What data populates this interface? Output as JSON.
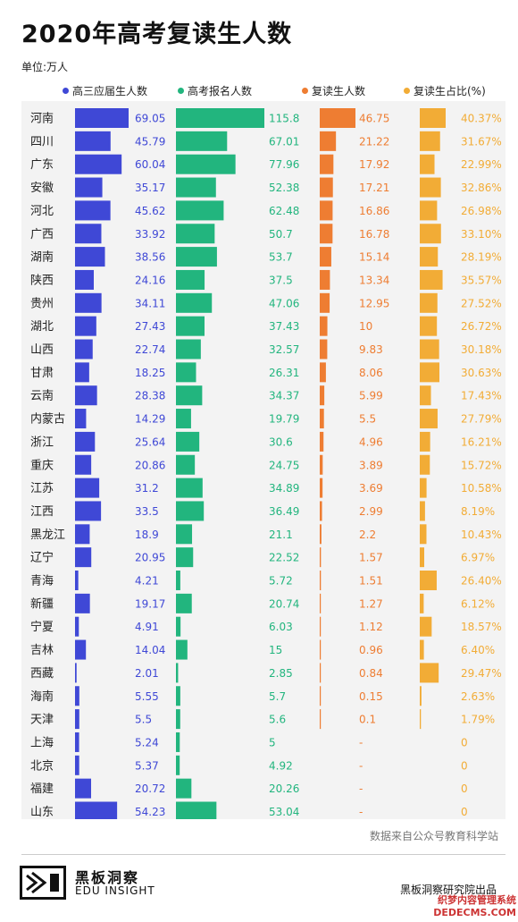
{
  "title": "2020年高考复读生人数",
  "unit": "单位:万人",
  "source": "数据来自公众号教育科学站",
  "brand": {
    "name_cn": "黑板洞察",
    "name_en": "EDU INSIGHT"
  },
  "credit": "黑板洞察研究院出品",
  "watermark": {
    "line1": "织梦内容管理系统",
    "line2": "DEDECMS.COM"
  },
  "colors": {
    "blue": "#3f48d6",
    "green": "#22b57e",
    "orange": "#ee7d32",
    "yellow": "#f2ac36",
    "panel": "#f3f3f3"
  },
  "chart_data": {
    "type": "bar",
    "categories": [
      "河南",
      "四川",
      "广东",
      "安徽",
      "河北",
      "广西",
      "湖南",
      "陕西",
      "贵州",
      "湖北",
      "山西",
      "甘肃",
      "云南",
      "内蒙古",
      "浙江",
      "重庆",
      "江苏",
      "江西",
      "黑龙江",
      "辽宁",
      "青海",
      "新疆",
      "宁夏",
      "吉林",
      "西藏",
      "海南",
      "天津",
      "上海",
      "北京",
      "福建",
      "山东"
    ],
    "series": [
      {
        "name": "高三应届生人数",
        "color": "#3f48d6",
        "values": [
          69.05,
          45.79,
          60.04,
          35.17,
          45.62,
          33.92,
          38.56,
          24.16,
          34.11,
          27.43,
          22.74,
          18.25,
          28.38,
          14.29,
          25.64,
          20.86,
          31.2,
          33.5,
          18.9,
          20.95,
          4.21,
          19.17,
          4.91,
          14.04,
          2.01,
          5.55,
          5.5,
          5.24,
          5.37,
          20.72,
          54.23
        ],
        "labels": [
          "69.05",
          "45.79",
          "60.04",
          "35.17",
          "45.62",
          "33.92",
          "38.56",
          "24.16",
          "34.11",
          "27.43",
          "22.74",
          "18.25",
          "28.38",
          "14.29",
          "25.64",
          "20.86",
          "31.2",
          "33.5",
          "18.9",
          "20.95",
          "4.21",
          "19.17",
          "4.91",
          "14.04",
          "2.01",
          "5.55",
          "5.5",
          "5.24",
          "5.37",
          "20.72",
          "54.23"
        ]
      },
      {
        "name": "高考报名人数",
        "color": "#22b57e",
        "values": [
          115.8,
          67.01,
          77.96,
          52.38,
          62.48,
          50.7,
          53.7,
          37.5,
          47.06,
          37.43,
          32.57,
          26.31,
          34.37,
          19.79,
          30.6,
          24.75,
          34.89,
          36.49,
          21.1,
          22.52,
          5.72,
          20.74,
          6.03,
          15,
          2.85,
          5.7,
          5.6,
          5,
          4.92,
          20.26,
          53.04
        ],
        "labels": [
          "115.8",
          "67.01",
          "77.96",
          "52.38",
          "62.48",
          "50.7",
          "53.7",
          "37.5",
          "47.06",
          "37.43",
          "32.57",
          "26.31",
          "34.37",
          "19.79",
          "30.6",
          "24.75",
          "34.89",
          "36.49",
          "21.1",
          "22.52",
          "5.72",
          "20.74",
          "6.03",
          "15",
          "2.85",
          "5.7",
          "5.6",
          "5",
          "4.92",
          "20.26",
          "53.04"
        ]
      },
      {
        "name": "复读生人数",
        "color": "#ee7d32",
        "values": [
          46.75,
          21.22,
          17.92,
          17.21,
          16.86,
          16.78,
          15.14,
          13.34,
          12.95,
          10,
          9.83,
          8.06,
          5.99,
          5.5,
          4.96,
          3.89,
          3.69,
          2.99,
          2.2,
          1.57,
          1.51,
          1.27,
          1.12,
          0.96,
          0.84,
          0.15,
          0.1,
          null,
          null,
          null,
          null
        ],
        "labels": [
          "46.75",
          "21.22",
          "17.92",
          "17.21",
          "16.86",
          "16.78",
          "15.14",
          "13.34",
          "12.95",
          "10",
          "9.83",
          "8.06",
          "5.99",
          "5.5",
          "4.96",
          "3.89",
          "3.69",
          "2.99",
          "2.2",
          "1.57",
          "1.51",
          "1.27",
          "1.12",
          "0.96",
          "0.84",
          "0.15",
          "0.1",
          "-",
          "-",
          "-",
          "-"
        ]
      },
      {
        "name": "复读生占比(%)",
        "color": "#f2ac36",
        "values": [
          40.37,
          31.67,
          22.99,
          32.86,
          26.98,
          33.1,
          28.19,
          35.57,
          27.52,
          26.72,
          30.18,
          30.63,
          17.43,
          27.79,
          16.21,
          15.72,
          10.58,
          8.19,
          10.43,
          6.97,
          26.4,
          6.12,
          18.57,
          6.4,
          29.47,
          2.63,
          1.79,
          0,
          0,
          0,
          0
        ],
        "labels": [
          "40.37%",
          "31.67%",
          "22.99%",
          "32.86%",
          "26.98%",
          "33.10%",
          "28.19%",
          "35.57%",
          "27.52%",
          "26.72%",
          "30.18%",
          "30.63%",
          "17.43%",
          "27.79%",
          "16.21%",
          "15.72%",
          "10.58%",
          "8.19%",
          "10.43%",
          "6.97%",
          "26.40%",
          "6.12%",
          "18.57%",
          "6.40%",
          "29.47%",
          "2.63%",
          "1.79%",
          "0",
          "0",
          "0",
          "0"
        ]
      }
    ]
  }
}
